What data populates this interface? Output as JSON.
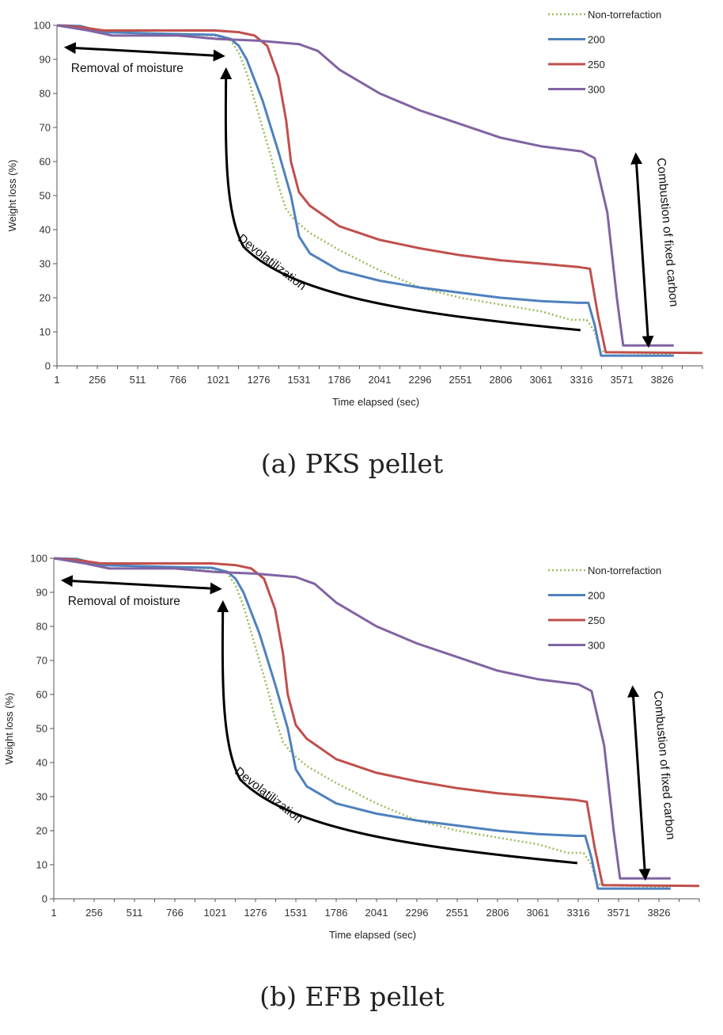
{
  "chart_data": [
    {
      "type": "line",
      "caption": "(a) PKS pellet",
      "xlabel": "Time elapsed (sec)",
      "ylabel": "Weight loss (%)",
      "xlim": [
        1,
        4081
      ],
      "ylim": [
        0,
        100
      ],
      "x_ticks": [
        "1",
        "256",
        "511",
        "766",
        "1021",
        "1276",
        "1531",
        "1786",
        "2041",
        "2296",
        "2551",
        "2806",
        "3061",
        "3316",
        "3571",
        "3826"
      ],
      "y_ticks": [
        "0",
        "10",
        "20",
        "30",
        "40",
        "50",
        "60",
        "70",
        "80",
        "90",
        "100"
      ],
      "grid": false,
      "legend_position": "top-right",
      "series": [
        {
          "name": "Non-torrefaction",
          "color": "#9bbb59",
          "style": "dotted",
          "x": [
            1,
            150,
            300,
            700,
            1000,
            1100,
            1150,
            1200,
            1250,
            1300,
            1350,
            1400,
            1450,
            1500,
            1600,
            1786,
            2041,
            2296,
            2551,
            2806,
            3061,
            3250,
            3350,
            3400,
            3430,
            3460,
            3900
          ],
          "y": [
            100,
            99.5,
            98,
            97.5,
            97,
            95.5,
            92,
            86,
            78,
            70,
            62,
            53,
            46,
            43,
            39,
            34,
            28,
            23,
            20,
            18,
            16,
            13.5,
            13.5,
            10,
            5,
            4,
            3.5
          ]
        },
        {
          "name": "200",
          "color": "#4f81bd",
          "style": "solid",
          "x": [
            1,
            150,
            300,
            700,
            1000,
            1100,
            1150,
            1200,
            1300,
            1400,
            1480,
            1531,
            1600,
            1786,
            2041,
            2296,
            2551,
            2806,
            3061,
            3300,
            3360,
            3400,
            3440,
            3900
          ],
          "y": [
            100,
            99.8,
            98,
            97.5,
            97.2,
            96,
            94,
            90,
            78,
            63,
            50,
            38,
            33,
            28,
            25,
            23,
            21.5,
            20,
            19,
            18.5,
            18.5,
            12,
            3,
            3
          ]
        },
        {
          "name": "250",
          "color": "#c0504d",
          "style": "solid",
          "x": [
            1,
            150,
            300,
            1000,
            1150,
            1250,
            1330,
            1400,
            1450,
            1480,
            1531,
            1600,
            1786,
            2041,
            2296,
            2551,
            2806,
            3061,
            3300,
            3370,
            3420,
            3470,
            4081
          ],
          "y": [
            100,
            99.5,
            98.5,
            98.5,
            98,
            97,
            94,
            85,
            72,
            60,
            51,
            47,
            41,
            37,
            34.5,
            32.5,
            31,
            30,
            29,
            28.5,
            15,
            4,
            3.8
          ]
        },
        {
          "name": "300",
          "color": "#8064a2",
          "style": "solid",
          "x": [
            1,
            200,
            350,
            766,
            1021,
            1276,
            1531,
            1650,
            1786,
            2041,
            2296,
            2551,
            2806,
            3061,
            3316,
            3400,
            3480,
            3540,
            3580,
            3900
          ],
          "y": [
            100,
            98.5,
            97,
            97,
            96,
            95.5,
            94.5,
            92.5,
            87,
            80,
            75,
            71,
            67,
            64.5,
            63,
            61,
            45,
            20,
            6,
            6
          ]
        }
      ],
      "annotations": [
        "Removal of moisture",
        "Devolatilization",
        "Combustion of fixed carbon"
      ]
    },
    {
      "type": "line",
      "caption": "(b) EFB pellet",
      "xlabel": "Time elapsed (sec)",
      "ylabel": "Weight loss (%)",
      "xlim": [
        1,
        4081
      ],
      "ylim": [
        0,
        100
      ],
      "x_ticks": [
        "1",
        "256",
        "511",
        "766",
        "1021",
        "1276",
        "1531",
        "1786",
        "2041",
        "2296",
        "2551",
        "2806",
        "3061",
        "3316",
        "3571",
        "3826"
      ],
      "y_ticks": [
        "0",
        "10",
        "20",
        "30",
        "40",
        "50",
        "60",
        "70",
        "80",
        "90",
        "100"
      ],
      "grid": false,
      "legend_position": "top-right",
      "series": [
        {
          "name": "Non-torrefaction",
          "color": "#9bbb59",
          "style": "dotted",
          "x": [
            1,
            150,
            300,
            700,
            1000,
            1100,
            1150,
            1200,
            1250,
            1300,
            1350,
            1400,
            1450,
            1500,
            1600,
            1786,
            2041,
            2296,
            2551,
            2806,
            3061,
            3250,
            3350,
            3400,
            3430,
            3460,
            3900
          ],
          "y": [
            100,
            99.5,
            98,
            97.5,
            97,
            95.5,
            92,
            86,
            78,
            70,
            62,
            53,
            46,
            43,
            39,
            34,
            28,
            23,
            20,
            18,
            16,
            13.5,
            13.5,
            10,
            5,
            4,
            3.5
          ]
        },
        {
          "name": "200",
          "color": "#4f81bd",
          "style": "solid",
          "x": [
            1,
            150,
            300,
            700,
            1000,
            1100,
            1150,
            1200,
            1300,
            1400,
            1480,
            1531,
            1600,
            1786,
            2041,
            2296,
            2551,
            2806,
            3061,
            3300,
            3360,
            3400,
            3440,
            3900
          ],
          "y": [
            100,
            99.8,
            98,
            97.5,
            97.2,
            96,
            94,
            90,
            78,
            63,
            50,
            38,
            33,
            28,
            25,
            23,
            21.5,
            20,
            19,
            18.5,
            18.5,
            12,
            3,
            3
          ]
        },
        {
          "name": "250",
          "color": "#c0504d",
          "style": "solid",
          "x": [
            1,
            150,
            300,
            1000,
            1150,
            1250,
            1330,
            1400,
            1450,
            1480,
            1531,
            1600,
            1786,
            2041,
            2296,
            2551,
            2806,
            3061,
            3300,
            3370,
            3420,
            3470,
            4081
          ],
          "y": [
            100,
            99.5,
            98.5,
            98.5,
            98,
            97,
            94,
            85,
            72,
            60,
            51,
            47,
            41,
            37,
            34.5,
            32.5,
            31,
            30,
            29,
            28.5,
            15,
            4,
            3.8
          ]
        },
        {
          "name": "300",
          "color": "#8064a2",
          "style": "solid",
          "x": [
            1,
            200,
            350,
            766,
            1021,
            1276,
            1531,
            1650,
            1786,
            2041,
            2296,
            2551,
            2806,
            3061,
            3316,
            3400,
            3480,
            3540,
            3580,
            3900
          ],
          "y": [
            100,
            98.5,
            97,
            97,
            96,
            95.5,
            94.5,
            92.5,
            87,
            80,
            75,
            71,
            67,
            64.5,
            63,
            61,
            45,
            20,
            6,
            6
          ]
        }
      ],
      "annotations": [
        "Removal of moisture",
        "Devolatilization",
        "Combustion of fixed carbon"
      ]
    }
  ]
}
